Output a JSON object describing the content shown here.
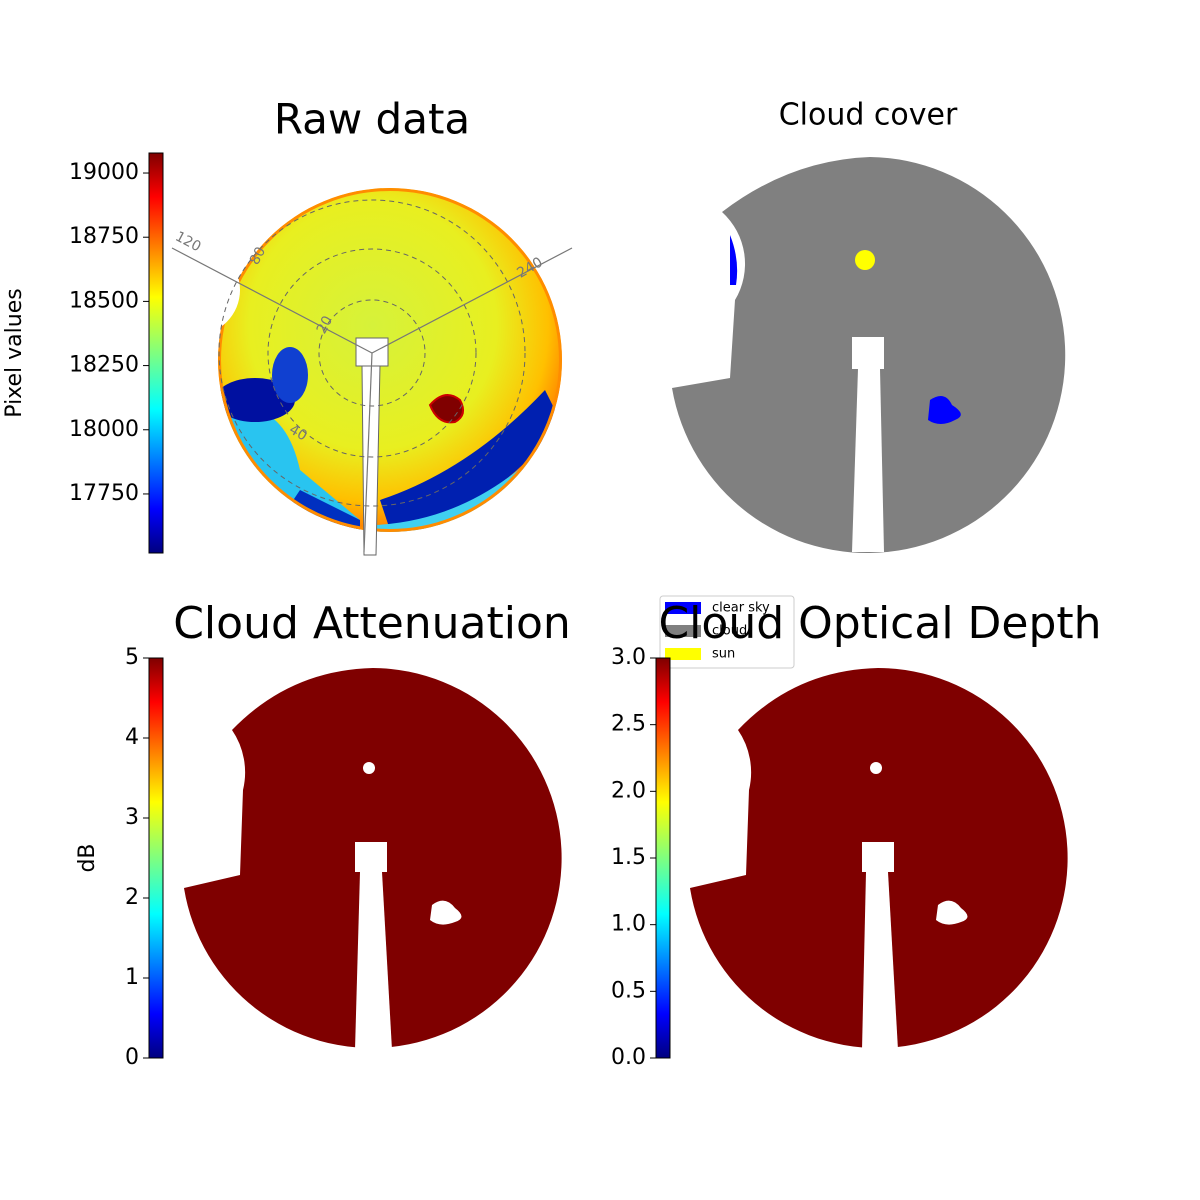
{
  "chart_data": [
    {
      "type": "image",
      "title": "Raw data",
      "ylabel": "Pixel values",
      "ylim": [
        17520,
        19078
      ],
      "yticks": [
        17750,
        18000,
        18250,
        18500,
        18750,
        19000
      ],
      "annotations": [
        "120",
        "80",
        "240",
        "20",
        "40"
      ]
    },
    {
      "type": "image",
      "title": "Cloud cover",
      "series": [
        {
          "name": "clear sky",
          "color": "#0000ff"
        },
        {
          "name": "cloud",
          "color": "#808080"
        },
        {
          "name": "sun",
          "color": "#ffff00"
        }
      ]
    },
    {
      "type": "image",
      "title": "Cloud Attenuation",
      "ylabel": "dB",
      "ylim": [
        0,
        5
      ],
      "yticks": [
        0,
        1,
        2,
        3,
        4,
        5
      ]
    },
    {
      "type": "image",
      "title": "Cloud Optical Depth",
      "ylim": [
        0,
        3
      ],
      "yticks": [
        {
          "value": 0,
          "label": "0.0"
        },
        {
          "value": 0.5,
          "label": "0.5"
        },
        {
          "value": 1,
          "label": "1.0"
        },
        {
          "value": 1.5,
          "label": "1.5"
        },
        {
          "value": 2,
          "label": "2.0"
        },
        {
          "value": 2.5,
          "label": "2.5"
        },
        {
          "value": 3,
          "label": "3.0"
        }
      ]
    }
  ]
}
